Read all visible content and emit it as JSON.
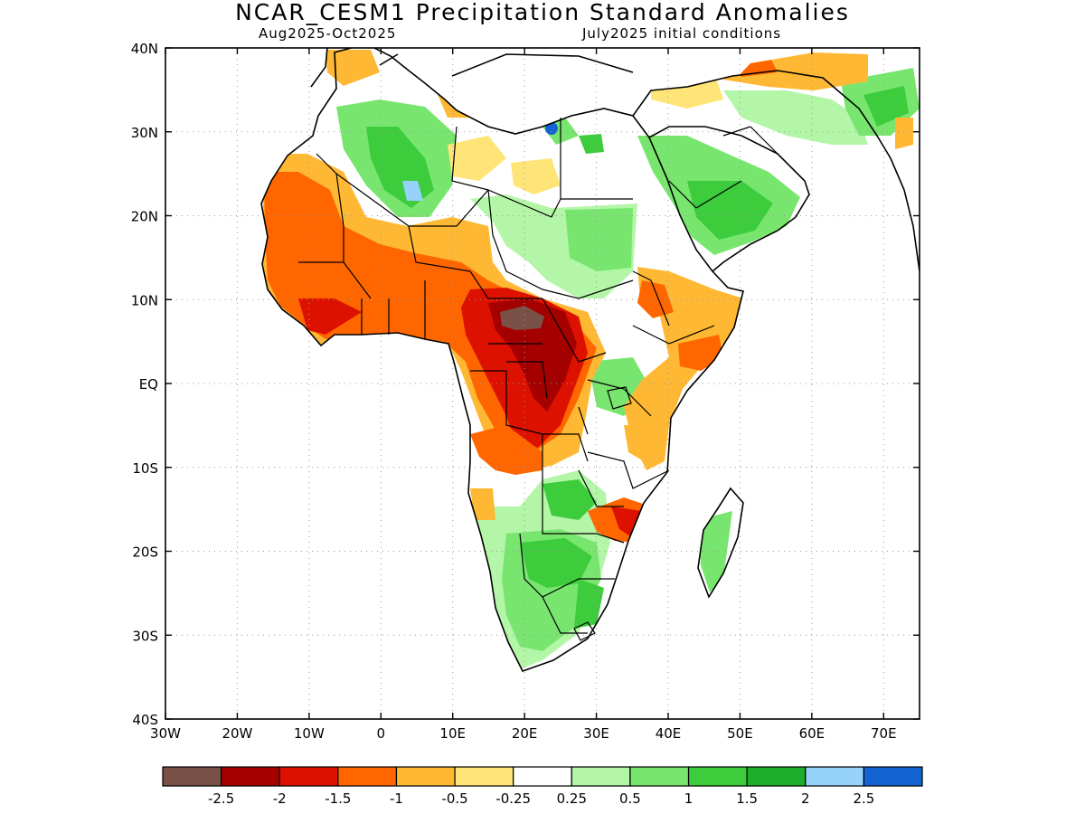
{
  "header": {
    "title": "NCAR_CESM1 Precipitation Standard Anomalies",
    "period": "Aug2025-Oct2025",
    "initial_conditions": "July2025 initial conditions"
  },
  "map": {
    "lon_range": [
      -30,
      75
    ],
    "lat_range": [
      -40,
      40
    ],
    "x_ticks": [
      "30W",
      "20W",
      "10W",
      "0",
      "10E",
      "20E",
      "30E",
      "40E",
      "50E",
      "60E",
      "70E"
    ],
    "y_ticks": [
      "40N",
      "30N",
      "20N",
      "10N",
      "EQ",
      "10S",
      "20S",
      "30S",
      "40S"
    ],
    "gridlines": true,
    "land_background": "#ffffff",
    "coastline_color": "#000000"
  },
  "colorbar": {
    "bins": [
      {
        "color": "#7a5147"
      },
      {
        "color": "#a50000"
      },
      {
        "color": "#dd1100"
      },
      {
        "color": "#ff6600"
      },
      {
        "color": "#ffb833"
      },
      {
        "color": "#ffe577"
      },
      {
        "color": "#ffffff"
      },
      {
        "color": "#b4f6a8"
      },
      {
        "color": "#78e66e"
      },
      {
        "color": "#3ccc3c"
      },
      {
        "color": "#1fae2b"
      },
      {
        "color": "#96d2fa"
      },
      {
        "color": "#1463d2"
      }
    ],
    "labels": [
      "-2.5",
      "-2",
      "-1.5",
      "-1",
      "-0.5",
      "-0.25",
      "0.25",
      "0.5",
      "1",
      "1.5",
      "2",
      "2.5"
    ]
  },
  "anomaly_regions": [
    {
      "name": "sahel-west-dry",
      "level": "-1",
      "color": "#ff6600"
    },
    {
      "name": "central-africa-very-dry",
      "level": "-2",
      "color": "#a50000"
    },
    {
      "name": "car-extreme-dry",
      "level": "-2.5",
      "color": "#7a5147"
    },
    {
      "name": "sahara-west-wet",
      "level": "1",
      "color": "#78e66e"
    },
    {
      "name": "arabia-wet",
      "level": "1",
      "color": "#78e66e"
    },
    {
      "name": "southern-africa-wet",
      "level": "1",
      "color": "#78e66e"
    },
    {
      "name": "mozambique-dry",
      "level": "-1.5",
      "color": "#dd1100"
    },
    {
      "name": "horn-of-africa-dry",
      "level": "-1",
      "color": "#ff6600"
    }
  ]
}
